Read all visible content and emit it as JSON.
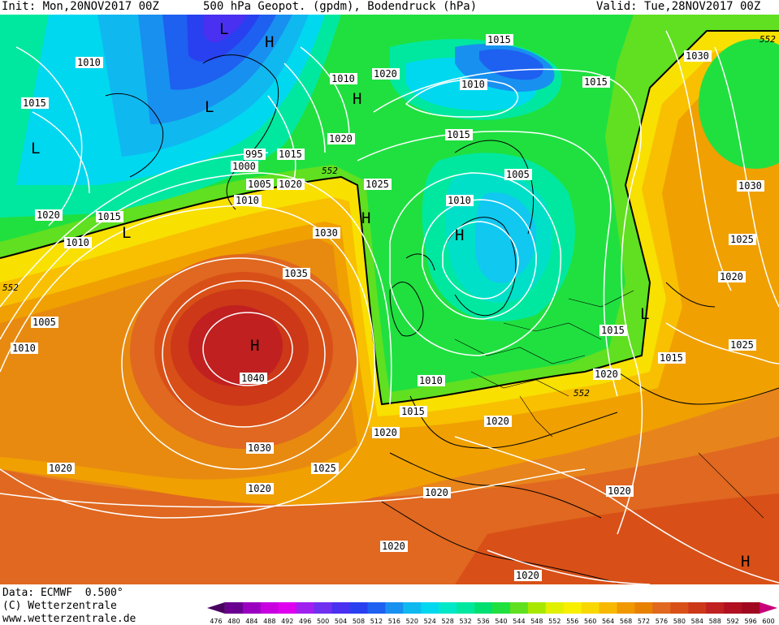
{
  "header": {
    "init": "Init: Mon,20NOV2017 00Z",
    "title": "500 hPa Geopot. (gpdm), Bodendruck (hPa)",
    "valid": "Valid: Tue,28NOV2017 00Z"
  },
  "footer": {
    "data": "Data: ECMWF  0.500°",
    "copyright": "(C) Wetterzentrale",
    "website": "www.wetterzentrale.de"
  },
  "legend": {
    "ticks": [
      "476",
      "480",
      "484",
      "488",
      "492",
      "496",
      "500",
      "504",
      "508",
      "512",
      "516",
      "520",
      "524",
      "528",
      "532",
      "536",
      "540",
      "544",
      "548",
      "552",
      "556",
      "560",
      "564",
      "568",
      "572",
      "576",
      "580",
      "584",
      "588",
      "592",
      "596",
      "600"
    ],
    "colors": [
      "#4a0060",
      "#6a0090",
      "#9a00c0",
      "#c800e0",
      "#e000f0",
      "#a020f0",
      "#7030f0",
      "#4a30f0",
      "#2840f0",
      "#1e60f0",
      "#1890f0",
      "#10b8f0",
      "#00d8f0",
      "#00e8c8",
      "#00e8a0",
      "#00e070",
      "#20e040",
      "#60e020",
      "#a8e800",
      "#e0f000",
      "#f8f000",
      "#f8d800",
      "#f8b800",
      "#f09800",
      "#e88000",
      "#e06820",
      "#d85018",
      "#cc3818",
      "#c02020",
      "#b01020",
      "#a00820",
      "#c8007a"
    ]
  },
  "pressure_centers": [
    {
      "label": "L"
    },
    {
      "label": "H"
    },
    {
      "label": "L"
    },
    {
      "label": "L"
    },
    {
      "label": "H"
    },
    {
      "label": "H"
    },
    {
      "label": "L"
    },
    {
      "label": "H"
    },
    {
      "label": "H"
    },
    {
      "label": "H"
    },
    {
      "label": "L"
    },
    {
      "label": "H"
    }
  ],
  "isobar_labels": [
    "1010",
    "1015",
    "1020",
    "1015",
    "1010",
    "1010",
    "1010",
    "1015",
    "1015",
    "1030",
    "1030",
    "1025",
    "1020",
    "1010",
    "1015",
    "1020",
    "1025",
    "1020",
    "995",
    "1000",
    "1015",
    "1005",
    "1020",
    "1010",
    "1015",
    "1025",
    "1005",
    "1010",
    "1030",
    "1025",
    "1020",
    "1035",
    "1005",
    "1010",
    "1040",
    "1015",
    "1015",
    "1025",
    "1010",
    "1015",
    "1020",
    "1030",
    "1025",
    "1020",
    "1020",
    "1020",
    "1020",
    "1020",
    "1020",
    "1020"
  ],
  "contour_label_552": [
    "552",
    "552",
    "552",
    "552"
  ]
}
